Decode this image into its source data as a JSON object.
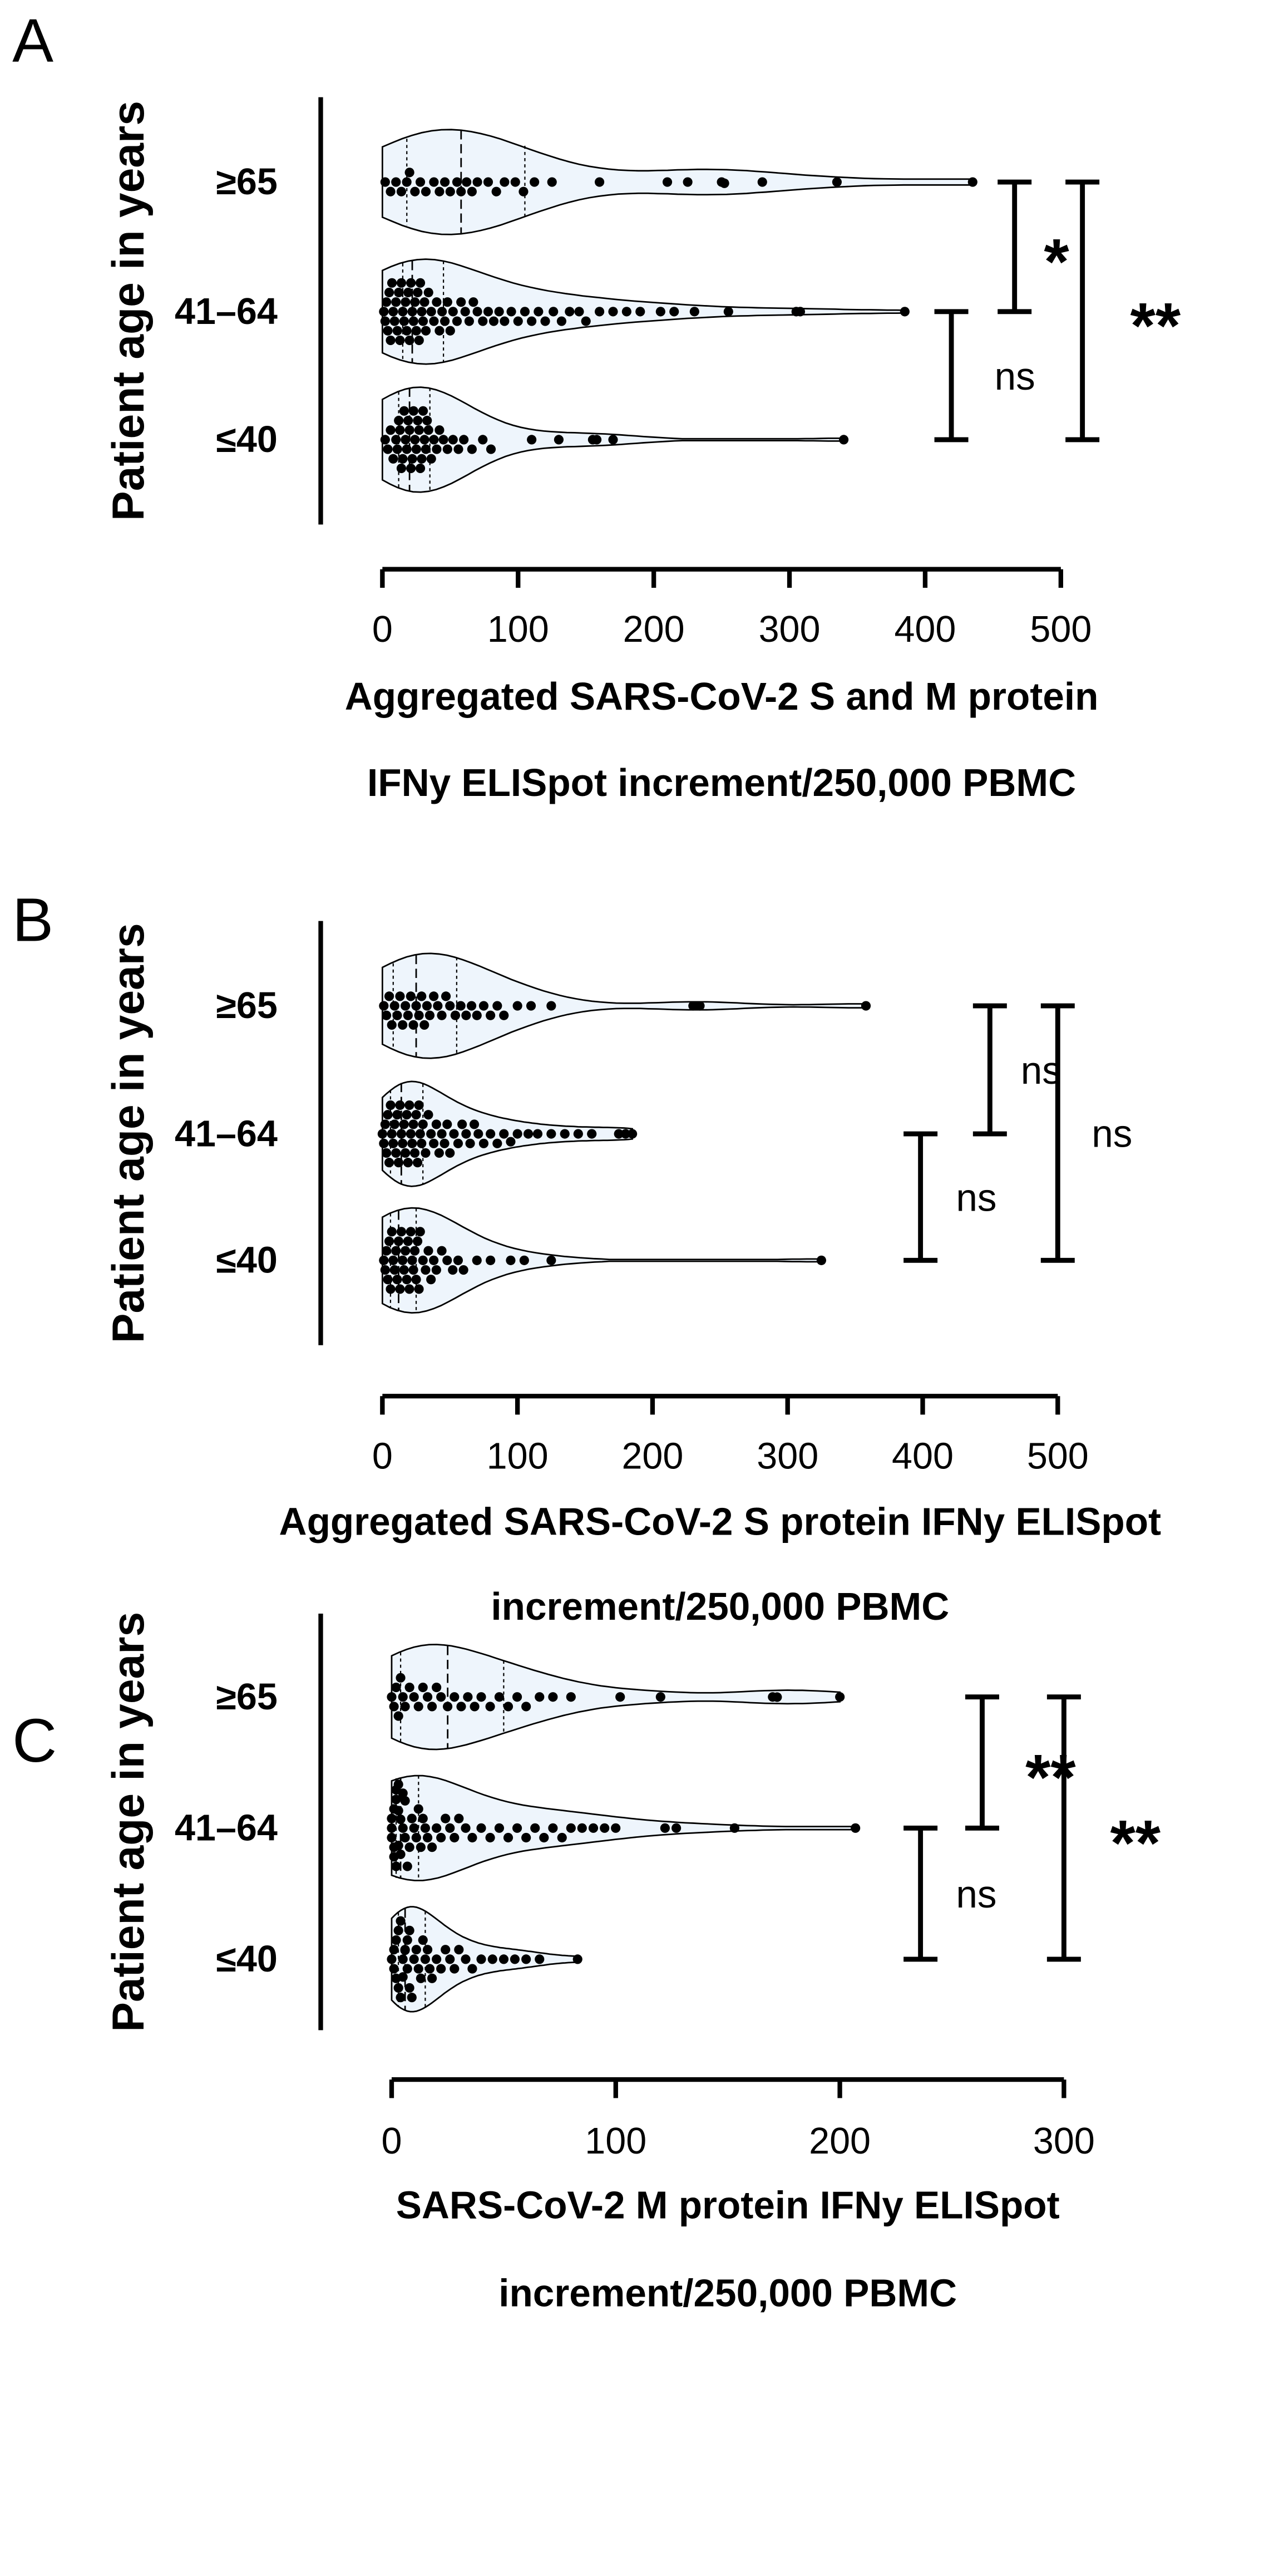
{
  "chart_data": [
    {
      "panel": "A",
      "type": "violin",
      "orientation": "horizontal",
      "ylabel": "Patient age in years",
      "xlabel_lines": [
        "Aggregated SARS-CoV-2 S and M protein",
        "IFNy ELISpot increment/250,000 PBMC"
      ],
      "categories": [
        "≥65",
        "41–64",
        "≤40"
      ],
      "xlim": [
        0,
        500
      ],
      "xticks": [
        0,
        100,
        200,
        300,
        400,
        500
      ],
      "tick_labels": [
        "0",
        "100",
        "200",
        "300",
        "400",
        "500"
      ],
      "series": [
        {
          "category": "≥65",
          "max": 435,
          "q1": 18,
          "median": 58,
          "q3": 105,
          "values": [
            2,
            6,
            10,
            14,
            18,
            20,
            24,
            28,
            32,
            38,
            42,
            46,
            50,
            55,
            58,
            62,
            66,
            70,
            78,
            84,
            90,
            98,
            104,
            112,
            125,
            160,
            210,
            225,
            250,
            252,
            280,
            335,
            435
          ]
        },
        {
          "category": "41–64",
          "max": 385,
          "q1": 15,
          "median": 22,
          "q3": 45,
          "values": [
            1,
            2,
            3,
            4,
            5,
            6,
            7,
            8,
            9,
            10,
            11,
            12,
            13,
            14,
            15,
            16,
            17,
            18,
            19,
            20,
            21,
            22,
            23,
            24,
            25,
            26,
            27,
            28,
            29,
            30,
            31,
            32,
            34,
            36,
            38,
            40,
            42,
            44,
            46,
            48,
            50,
            52,
            55,
            58,
            61,
            64,
            67,
            70,
            74,
            78,
            82,
            86,
            90,
            95,
            100,
            105,
            110,
            115,
            120,
            126,
            132,
            138,
            145,
            150,
            160,
            170,
            180,
            190,
            205,
            215,
            230,
            255,
            305,
            308,
            385
          ]
        },
        {
          "category": "≤40",
          "max": 340,
          "q1": 12,
          "median": 20,
          "q3": 35,
          "values": [
            2,
            4,
            6,
            8,
            10,
            11,
            12,
            13,
            14,
            15,
            16,
            17,
            18,
            19,
            20,
            21,
            22,
            23,
            24,
            25,
            26,
            27,
            28,
            29,
            30,
            31,
            32,
            33,
            34,
            36,
            38,
            40,
            42,
            45,
            48,
            52,
            56,
            60,
            66,
            74,
            80,
            110,
            130,
            155,
            158,
            170,
            340
          ]
        }
      ],
      "comparisons": [
        {
          "from": "41–64",
          "to": "≥65",
          "label": "*"
        },
        {
          "from": "≤40",
          "to": "41–64",
          "label": "ns"
        },
        {
          "from": "≤40",
          "to": "≥65",
          "label": "**"
        }
      ]
    },
    {
      "panel": "B",
      "type": "violin",
      "orientation": "horizontal",
      "ylabel": "Patient age in years",
      "xlabel_lines": [
        "Aggregated SARS-CoV-2 S protein IFNy ELISpot",
        "increment/250,000 PBMC"
      ],
      "categories": [
        "≥65",
        "41–64",
        "≤40"
      ],
      "xlim": [
        0,
        500
      ],
      "xticks": [
        0,
        100,
        200,
        300,
        400,
        500
      ],
      "tick_labels": [
        "0",
        "100",
        "200",
        "300",
        "400",
        "500"
      ],
      "series": [
        {
          "category": "≥65",
          "max": 358,
          "q1": 8,
          "median": 25,
          "q3": 55,
          "values": [
            1,
            3,
            5,
            7,
            9,
            11,
            13,
            15,
            17,
            19,
            21,
            23,
            25,
            27,
            29,
            31,
            33,
            35,
            38,
            41,
            44,
            47,
            50,
            54,
            58,
            62,
            66,
            70,
            75,
            80,
            85,
            90,
            100,
            110,
            125,
            230,
            235,
            358
          ]
        },
        {
          "category": "41–64",
          "max": 185,
          "q1": 6,
          "median": 14,
          "q3": 30,
          "values": [
            0,
            1,
            2,
            3,
            4,
            5,
            6,
            7,
            8,
            9,
            10,
            11,
            12,
            13,
            14,
            15,
            16,
            17,
            18,
            19,
            20,
            21,
            22,
            23,
            24,
            25,
            26,
            27,
            28,
            29,
            30,
            32,
            34,
            36,
            38,
            40,
            42,
            44,
            46,
            48,
            50,
            53,
            56,
            59,
            62,
            65,
            68,
            71,
            75,
            80,
            85,
            90,
            95,
            100,
            108,
            115,
            125,
            135,
            145,
            155,
            175,
            180,
            185
          ]
        },
        {
          "category": "≤40",
          "max": 325,
          "q1": 6,
          "median": 12,
          "q3": 25,
          "values": [
            1,
            2,
            3,
            4,
            5,
            6,
            7,
            8,
            9,
            10,
            11,
            12,
            13,
            14,
            15,
            16,
            17,
            18,
            19,
            20,
            21,
            22,
            23,
            24,
            25,
            26,
            27,
            28,
            30,
            32,
            34,
            36,
            38,
            40,
            44,
            48,
            52,
            56,
            60,
            70,
            80,
            95,
            105,
            125,
            325
          ]
        }
      ],
      "comparisons": [
        {
          "from": "41–64",
          "to": "≥65",
          "label": "ns"
        },
        {
          "from": "≤40",
          "to": "41–64",
          "label": "ns"
        },
        {
          "from": "≤40",
          "to": "≥65",
          "label": "ns"
        }
      ]
    },
    {
      "panel": "C",
      "type": "violin",
      "orientation": "horizontal",
      "ylabel": "Patient age in years",
      "xlabel_lines": [
        "SARS-CoV-2 M protein IFNy ELISpot",
        "increment/250,000 PBMC"
      ],
      "categories": [
        "≥65",
        "41–64",
        "≤40"
      ],
      "xlim": [
        0,
        300
      ],
      "xticks": [
        0,
        100,
        200,
        300
      ],
      "tick_labels": [
        "0",
        "100",
        "200",
        "300"
      ],
      "series": [
        {
          "category": "≥65",
          "max": 200,
          "q1": 4,
          "median": 25,
          "q3": 50,
          "values": [
            0,
            1,
            2,
            3,
            4,
            5,
            6,
            8,
            10,
            12,
            14,
            16,
            18,
            20,
            22,
            25,
            28,
            31,
            34,
            37,
            40,
            44,
            48,
            52,
            56,
            60,
            66,
            72,
            80,
            102,
            120,
            170,
            172,
            200
          ]
        },
        {
          "category": "41–64",
          "max": 207,
          "q1": 2,
          "median": 4,
          "q3": 12,
          "values": [
            0,
            0,
            0,
            1,
            1,
            1,
            2,
            2,
            2,
            3,
            3,
            3,
            4,
            4,
            5,
            5,
            6,
            6,
            7,
            8,
            9,
            10,
            11,
            12,
            13,
            14,
            15,
            16,
            18,
            20,
            22,
            24,
            26,
            28,
            30,
            33,
            36,
            40,
            44,
            48,
            52,
            56,
            60,
            64,
            68,
            72,
            76,
            80,
            85,
            90,
            95,
            100,
            122,
            127,
            153,
            207
          ]
        },
        {
          "category": "≤40",
          "max": 83,
          "q1": 3,
          "median": 6,
          "q3": 15,
          "values": [
            0,
            1,
            1,
            2,
            2,
            3,
            3,
            4,
            4,
            5,
            5,
            6,
            6,
            7,
            7,
            8,
            8,
            9,
            10,
            11,
            12,
            13,
            14,
            15,
            16,
            17,
            18,
            20,
            22,
            24,
            26,
            28,
            30,
            33,
            36,
            40,
            45,
            50,
            55,
            60,
            66,
            83
          ]
        }
      ],
      "comparisons": [
        {
          "from": "41–64",
          "to": "≥65",
          "label": "**"
        },
        {
          "from": "≤40",
          "to": "41–64",
          "label": "ns"
        },
        {
          "from": "≤40",
          "to": "≥65",
          "label": "**"
        }
      ]
    }
  ]
}
